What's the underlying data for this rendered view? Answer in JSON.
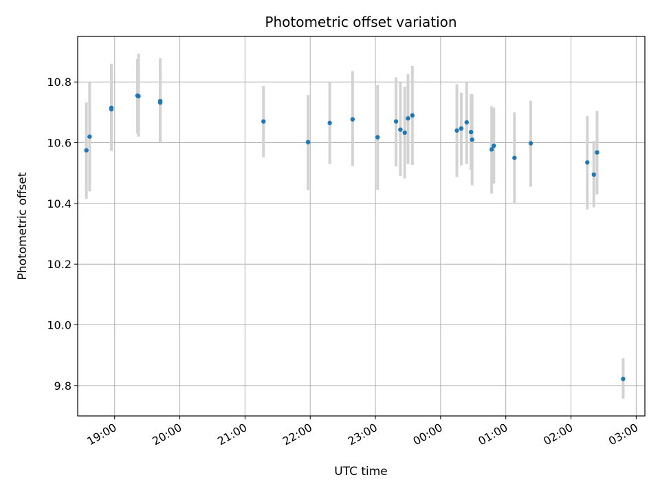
{
  "chart_data": {
    "type": "scatter",
    "title": "Photometric offset variation",
    "xlabel": "UTC time",
    "ylabel": "Photometric offset",
    "x_axis": "time",
    "xlim": [
      "18:26",
      "03:08"
    ],
    "ylim": [
      9.7,
      10.95
    ],
    "yticks": [
      9.8,
      10.0,
      10.2,
      10.4,
      10.6,
      10.8
    ],
    "ytick_labels": [
      "9.8",
      "10.0",
      "10.2",
      "10.4",
      "10.6",
      "10.8"
    ],
    "xticks": [
      "19:00",
      "20:00",
      "21:00",
      "22:00",
      "23:00",
      "00:00",
      "01:00",
      "02:00",
      "03:00"
    ],
    "xtick_labels": [
      "19:00",
      "20:00",
      "21:00",
      "22:00",
      "23:00",
      "00:00",
      "01:00",
      "02:00",
      "03:00"
    ],
    "grid": true,
    "colors": {
      "points": "#1f77b4",
      "errorbars": "#d3d3d3",
      "grid": "#b0b0b0"
    },
    "points": [
      {
        "time": "18:34",
        "value": 10.575,
        "lower": 10.415,
        "upper": 10.733
      },
      {
        "time": "18:37",
        "value": 10.62,
        "lower": 10.44,
        "upper": 10.8
      },
      {
        "time": "18:57",
        "value": 10.715,
        "lower": 10.573,
        "upper": 10.86
      },
      {
        "time": "18:57",
        "value": 10.71,
        "lower": 10.6,
        "upper": 10.8
      },
      {
        "time": "19:21",
        "value": 10.755,
        "lower": 10.63,
        "upper": 10.875
      },
      {
        "time": "19:22",
        "value": 10.753,
        "lower": 10.62,
        "upper": 10.893
      },
      {
        "time": "19:42",
        "value": 10.737,
        "lower": 10.6,
        "upper": 10.878
      },
      {
        "time": "19:42",
        "value": 10.732,
        "lower": 10.6,
        "upper": 10.86
      },
      {
        "time": "21:17",
        "value": 10.67,
        "lower": 10.552,
        "upper": 10.787
      },
      {
        "time": "21:58",
        "value": 10.602,
        "lower": 10.444,
        "upper": 10.757
      },
      {
        "time": "22:18",
        "value": 10.665,
        "lower": 10.53,
        "upper": 10.8
      },
      {
        "time": "22:39",
        "value": 10.677,
        "lower": 10.523,
        "upper": 10.836
      },
      {
        "time": "23:02",
        "value": 10.618,
        "lower": 10.445,
        "upper": 10.79
      },
      {
        "time": "23:19",
        "value": 10.67,
        "lower": 10.522,
        "upper": 10.815
      },
      {
        "time": "23:23",
        "value": 10.643,
        "lower": 10.49,
        "upper": 10.8
      },
      {
        "time": "23:27",
        "value": 10.633,
        "lower": 10.482,
        "upper": 10.785
      },
      {
        "time": "23:30",
        "value": 10.68,
        "lower": 10.53,
        "upper": 10.826
      },
      {
        "time": "23:34",
        "value": 10.69,
        "lower": 10.527,
        "upper": 10.853
      },
      {
        "time": "00:15",
        "value": 10.64,
        "lower": 10.487,
        "upper": 10.793
      },
      {
        "time": "00:19",
        "value": 10.647,
        "lower": 10.525,
        "upper": 10.765
      },
      {
        "time": "00:24",
        "value": 10.667,
        "lower": 10.53,
        "upper": 10.8
      },
      {
        "time": "00:28",
        "value": 10.635,
        "lower": 10.51,
        "upper": 10.76
      },
      {
        "time": "00:29",
        "value": 10.61,
        "lower": 10.46,
        "upper": 10.76
      },
      {
        "time": "00:47",
        "value": 10.578,
        "lower": 10.432,
        "upper": 10.72
      },
      {
        "time": "00:49",
        "value": 10.59,
        "lower": 10.465,
        "upper": 10.715
      },
      {
        "time": "01:08",
        "value": 10.55,
        "lower": 10.4,
        "upper": 10.7
      },
      {
        "time": "01:23",
        "value": 10.598,
        "lower": 10.455,
        "upper": 10.738
      },
      {
        "time": "02:15",
        "value": 10.535,
        "lower": 10.38,
        "upper": 10.688
      },
      {
        "time": "02:21",
        "value": 10.495,
        "lower": 10.387,
        "upper": 10.605
      },
      {
        "time": "02:24",
        "value": 10.568,
        "lower": 10.43,
        "upper": 10.705
      },
      {
        "time": "02:48",
        "value": 9.822,
        "lower": 9.757,
        "upper": 9.89
      }
    ]
  }
}
